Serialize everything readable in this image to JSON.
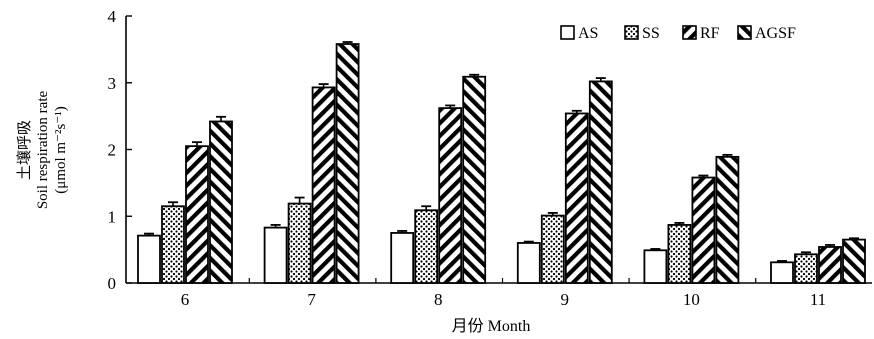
{
  "chart_data": {
    "type": "bar",
    "categories": [
      "6",
      "7",
      "8",
      "9",
      "10",
      "11"
    ],
    "xlabel": "月份 Month",
    "ylabel": [
      "土壤呼吸",
      "Soil respiration rate",
      "(μmol m⁻²s⁻¹)"
    ],
    "ylim": [
      0,
      4
    ],
    "yticks": [
      "0",
      "1",
      "2",
      "3",
      "4"
    ],
    "legend_position": "top-right",
    "series": [
      {
        "name": "AS",
        "pattern": "hollow",
        "values": [
          0.71,
          0.83,
          0.75,
          0.6,
          0.49,
          0.31
        ],
        "errors": [
          0.03,
          0.04,
          0.03,
          0.02,
          0.02,
          0.02
        ]
      },
      {
        "name": "SS",
        "pattern": "dotted",
        "values": [
          1.15,
          1.19,
          1.09,
          1.01,
          0.87,
          0.43
        ],
        "errors": [
          0.06,
          0.09,
          0.06,
          0.04,
          0.03,
          0.03
        ]
      },
      {
        "name": "RF",
        "pattern": "back-diagonal",
        "values": [
          2.05,
          2.93,
          2.62,
          2.54,
          1.58,
          0.54
        ],
        "errors": [
          0.06,
          0.05,
          0.04,
          0.04,
          0.03,
          0.03
        ]
      },
      {
        "name": "AGSF",
        "pattern": "diagonal",
        "values": [
          2.42,
          3.58,
          3.09,
          3.02,
          1.89,
          0.65
        ],
        "errors": [
          0.07,
          0.03,
          0.03,
          0.05,
          0.03,
          0.02
        ]
      }
    ]
  }
}
